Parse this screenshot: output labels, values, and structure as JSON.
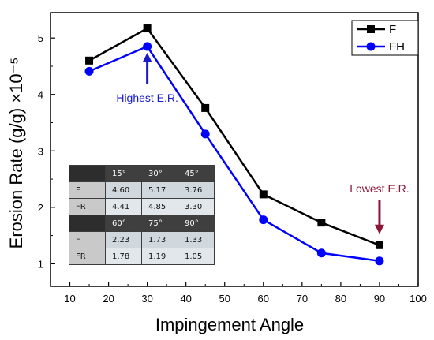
{
  "chart_data": {
    "type": "line",
    "xlabel": "Impingement Angle",
    "ylabel": "Erosion Rate (g/g) ×10⁻⁵",
    "xlim": [
      5,
      100
    ],
    "ylim": [
      0.6,
      5.45
    ],
    "x_ticks": [
      "10",
      "20",
      "30",
      "40",
      "50",
      "60",
      "70",
      "80",
      "90",
      "100"
    ],
    "y_ticks": [
      "1",
      "2",
      "3",
      "4",
      "5"
    ],
    "grid": false,
    "legend_position": "top-right",
    "x": [
      15,
      30,
      45,
      60,
      75,
      90
    ],
    "series": [
      {
        "name": "F",
        "marker": "square",
        "color": "#000000",
        "values": [
          4.6,
          5.17,
          3.76,
          2.23,
          1.73,
          1.33
        ]
      },
      {
        "name": "FH",
        "marker": "circle",
        "color": "#0000ff",
        "values": [
          4.41,
          4.85,
          3.3,
          1.78,
          1.19,
          1.05
        ]
      }
    ],
    "annotations": [
      {
        "text": "Highest E.R.",
        "x": 30,
        "y": 4.85,
        "color": "#1a1acc"
      },
      {
        "text": "Lowest E.R.",
        "x": 90,
        "y": 1.33,
        "color": "#8b1538"
      }
    ],
    "table": {
      "header1": [
        "15°",
        "30°",
        "45°"
      ],
      "header2": [
        "60°",
        "75°",
        "90°"
      ],
      "rows1": [
        {
          "label": "F",
          "values": [
            "4.60",
            "5.17",
            "3.76"
          ]
        },
        {
          "label": "FR",
          "values": [
            "4.41",
            "4.85",
            "3.30"
          ]
        }
      ],
      "rows2": [
        {
          "label": "F",
          "values": [
            "2.23",
            "1.73",
            "1.33"
          ]
        },
        {
          "label": "FR",
          "values": [
            "1.78",
            "1.19",
            "1.05"
          ]
        }
      ]
    }
  }
}
